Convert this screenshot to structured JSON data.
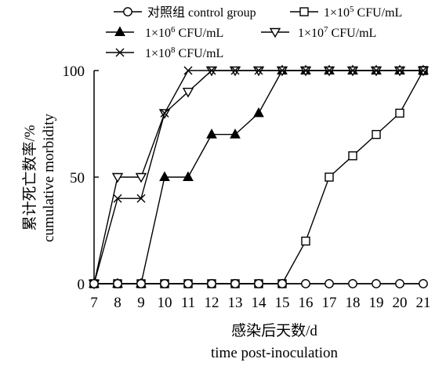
{
  "chart_data": {
    "type": "line",
    "title": "",
    "xlabel_cn": "感染后天数/d",
    "xlabel_en": "time post-inoculation",
    "ylabel_cn": "累计死亡数率/%",
    "ylabel_en": "cumulative morbidity",
    "x": [
      7,
      8,
      9,
      10,
      11,
      12,
      13,
      14,
      15,
      16,
      17,
      18,
      19,
      20,
      21
    ],
    "xlim": [
      7,
      21
    ],
    "ylim": [
      0,
      100
    ],
    "yticks": [
      0,
      50,
      100
    ],
    "grid": false,
    "legend_position": "top-left",
    "series": [
      {
        "name_cn": "对照组",
        "name_en": "control group",
        "marker": "circle-open",
        "values": [
          0,
          0,
          0,
          0,
          0,
          0,
          0,
          0,
          0,
          0,
          0,
          0,
          0,
          0,
          0
        ]
      },
      {
        "name_base": "1×10",
        "name_exp": "5",
        "name_unit": " CFU/mL",
        "marker": "square-open",
        "values": [
          0,
          0,
          0,
          0,
          0,
          0,
          0,
          0,
          0,
          20,
          50,
          60,
          70,
          80,
          100
        ]
      },
      {
        "name_base": "1×10",
        "name_exp": "6",
        "name_unit": " CFU/mL",
        "marker": "triangle-filled",
        "values": [
          0,
          0,
          0,
          50,
          50,
          70,
          70,
          80,
          100,
          100,
          100,
          100,
          100,
          100,
          100
        ]
      },
      {
        "name_base": "1×10",
        "name_exp": "7",
        "name_unit": " CFU/mL",
        "marker": "triangle-down-open",
        "values": [
          0,
          50,
          50,
          80,
          90,
          100,
          100,
          100,
          100,
          100,
          100,
          100,
          100,
          100,
          100
        ]
      },
      {
        "name_base": "1×10",
        "name_exp": "8",
        "name_unit": " CFU/mL",
        "marker": "x",
        "values": [
          0,
          40,
          40,
          80,
          100,
          100,
          100,
          100,
          100,
          100,
          100,
          100,
          100,
          100,
          100
        ]
      }
    ]
  }
}
